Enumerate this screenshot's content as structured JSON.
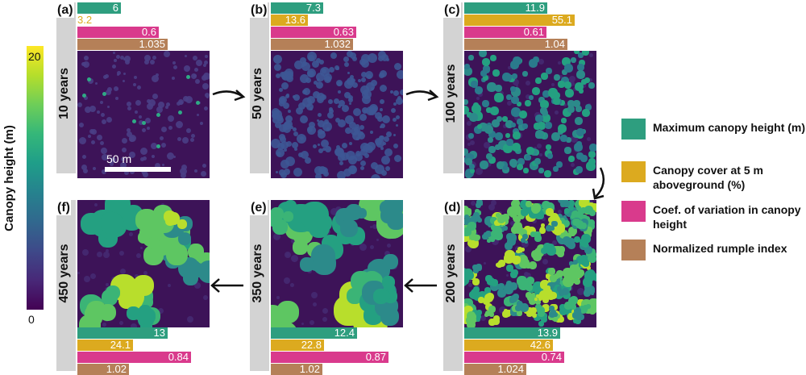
{
  "colorbar": {
    "title": "Canopy height (m)",
    "max_label": "20",
    "min_label": "0",
    "colormap": [
      "#440154",
      "#3e4989",
      "#26828e",
      "#35b779",
      "#fde725"
    ]
  },
  "panels": [
    {
      "id": "a",
      "label": "(a)",
      "age": "10 years",
      "height": "6",
      "cover": "3.2",
      "cov": "0.6",
      "rumple": "1.035",
      "height_val": 6,
      "cover_val": 3.2,
      "cov_val": 0.6,
      "rumple_val": 1.035,
      "scale_label": "50 m"
    },
    {
      "id": "b",
      "label": "(b)",
      "age": "50 years",
      "height": "7.3",
      "cover": "13.6",
      "cov": "0.63",
      "rumple": "1.032",
      "height_val": 7.3,
      "cover_val": 13.6,
      "cov_val": 0.63,
      "rumple_val": 1.032
    },
    {
      "id": "c",
      "label": "(c)",
      "age": "100 years",
      "height": "11.9",
      "cover": "55.1",
      "cov": "0.61",
      "rumple": "1.04",
      "height_val": 11.9,
      "cover_val": 55.1,
      "cov_val": 0.61,
      "rumple_val": 1.04
    },
    {
      "id": "d",
      "label": "(d)",
      "age": "200 years",
      "height": "13.9",
      "cover": "42.6",
      "cov": "0.74",
      "rumple": "1.024",
      "height_val": 13.9,
      "cover_val": 42.6,
      "cov_val": 0.74,
      "rumple_val": 1.024
    },
    {
      "id": "e",
      "label": "(e)",
      "age": "350 years",
      "height": "12.4",
      "cover": "22.8",
      "cov": "0.87",
      "rumple": "1.02",
      "height_val": 12.4,
      "cover_val": 22.8,
      "cov_val": 0.87,
      "rumple_val": 1.02
    },
    {
      "id": "f",
      "label": "(f)",
      "age": "450 years",
      "height": "13",
      "cover": "24.1",
      "cov": "0.84",
      "rumple": "1.02",
      "height_val": 13,
      "cover_val": 24.1,
      "cov_val": 0.84,
      "rumple_val": 1.02
    }
  ],
  "legend": [
    {
      "label": "Maximum canopy height (m)",
      "color": "#2e9e7f"
    },
    {
      "label": "Canopy cover at 5 m aboveground (%)",
      "color": "#dcaa1f"
    },
    {
      "label": "Coef. of variation in canopy height",
      "color": "#d93a8c"
    },
    {
      "label": "Normalized rumple index",
      "color": "#b58058"
    }
  ],
  "colors": {
    "height": "#2e9e7f",
    "cover": "#dcaa1f",
    "cov": "#d93a8c",
    "rumple": "#b58058",
    "panel_side": "#d3d3d3",
    "canopy_background": "#3d1358"
  }
}
